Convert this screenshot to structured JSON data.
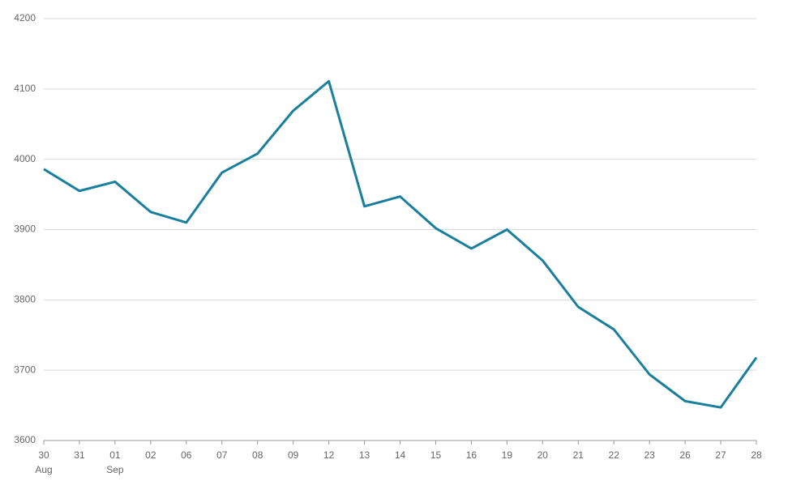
{
  "chart_data": {
    "type": "line",
    "categories": [
      "30",
      "31",
      "01",
      "02",
      "06",
      "07",
      "08",
      "09",
      "12",
      "13",
      "14",
      "15",
      "16",
      "19",
      "20",
      "21",
      "22",
      "23",
      "26",
      "27",
      "28"
    ],
    "category_sublabels": [
      "Aug",
      null,
      "Sep",
      null,
      null,
      null,
      null,
      null,
      null,
      null,
      null,
      null,
      null,
      null,
      null,
      null,
      null,
      null,
      null,
      null,
      null
    ],
    "series": [
      {
        "color": "#1a7f9c",
        "values": [
          3986,
          3955,
          3968,
          3925,
          3910,
          3981,
          4008,
          4069,
          4111,
          3933,
          3947,
          3902,
          3873,
          3900,
          3856,
          3790,
          3758,
          3694,
          3656,
          3647,
          3718
        ]
      }
    ],
    "ylim": [
      3600,
      4200
    ],
    "yticks": [
      3600,
      3700,
      3800,
      3900,
      4000,
      4100,
      4200
    ],
    "grid": true
  }
}
